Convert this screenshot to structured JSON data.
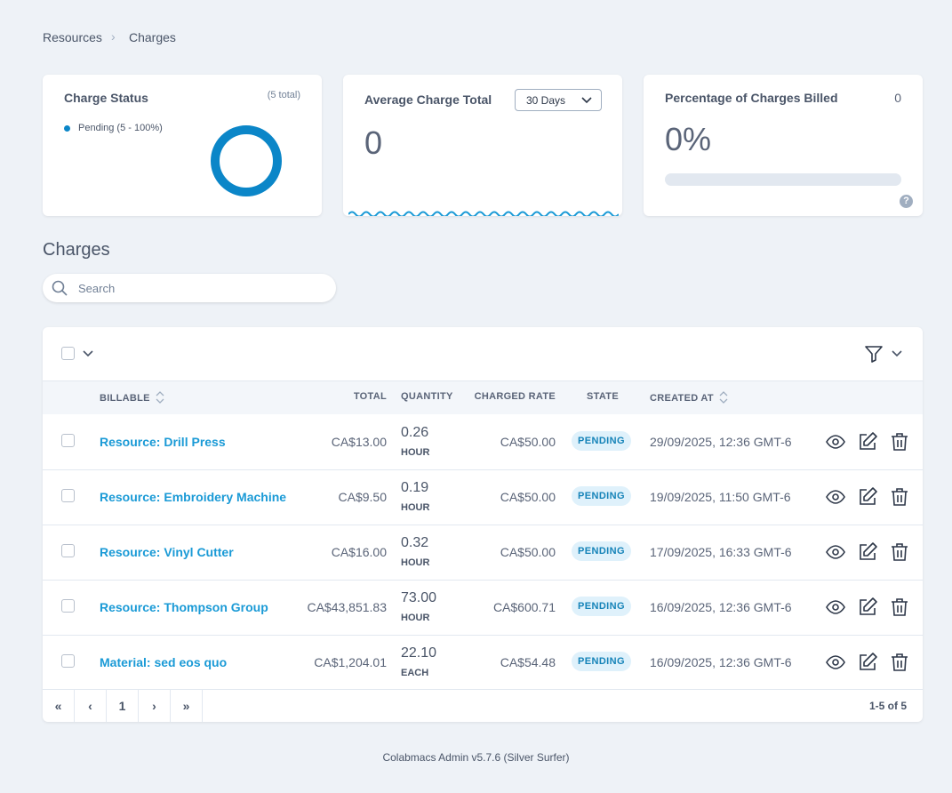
{
  "breadcrumb": [
    "Resources",
    "Charges"
  ],
  "cards": {
    "status": {
      "title": "Charge Status",
      "total": "(5 total)",
      "legend": "Pending (5 - 100%)"
    },
    "average": {
      "title": "Average Charge Total",
      "range": "30 Days",
      "value": "0"
    },
    "billed": {
      "title": "Percentage of Charges Billed",
      "count": "0",
      "value": "0%"
    }
  },
  "section_title": "Charges",
  "search_placeholder": "Search",
  "table": {
    "columns": [
      "BILLABLE",
      "TOTAL",
      "QUANTITY",
      "CHARGED RATE",
      "STATE",
      "CREATED AT"
    ],
    "rows": [
      [
        "Resource: Drill Press",
        "CA$13.00",
        "0.26",
        "HOUR",
        "CA$50.00",
        "PENDING",
        "29/09/2025, 12:36 GMT-6"
      ],
      [
        "Resource: Embroidery Machine",
        "CA$9.50",
        "0.19",
        "HOUR",
        "CA$50.00",
        "PENDING",
        "19/09/2025, 11:50 GMT-6"
      ],
      [
        "Resource: Vinyl Cutter",
        "CA$16.00",
        "0.32",
        "HOUR",
        "CA$50.00",
        "PENDING",
        "17/09/2025, 16:33 GMT-6"
      ],
      [
        "Resource: Thompson Group",
        "CA$43,851.83",
        "73.00",
        "HOUR",
        "CA$600.71",
        "PENDING",
        "16/09/2025, 12:36 GMT-6"
      ],
      [
        "Material: sed eos quo",
        "CA$1,204.01",
        "22.10",
        "EACH",
        "CA$54.48",
        "PENDING",
        "16/09/2025, 12:36 GMT-6"
      ]
    ]
  },
  "pagination": {
    "pages": [
      "«",
      "‹",
      "1",
      "›",
      "»"
    ],
    "summary": "1-5 of 5"
  },
  "footer": "Colabmacs Admin v5.7.6 (Silver Surfer)"
}
